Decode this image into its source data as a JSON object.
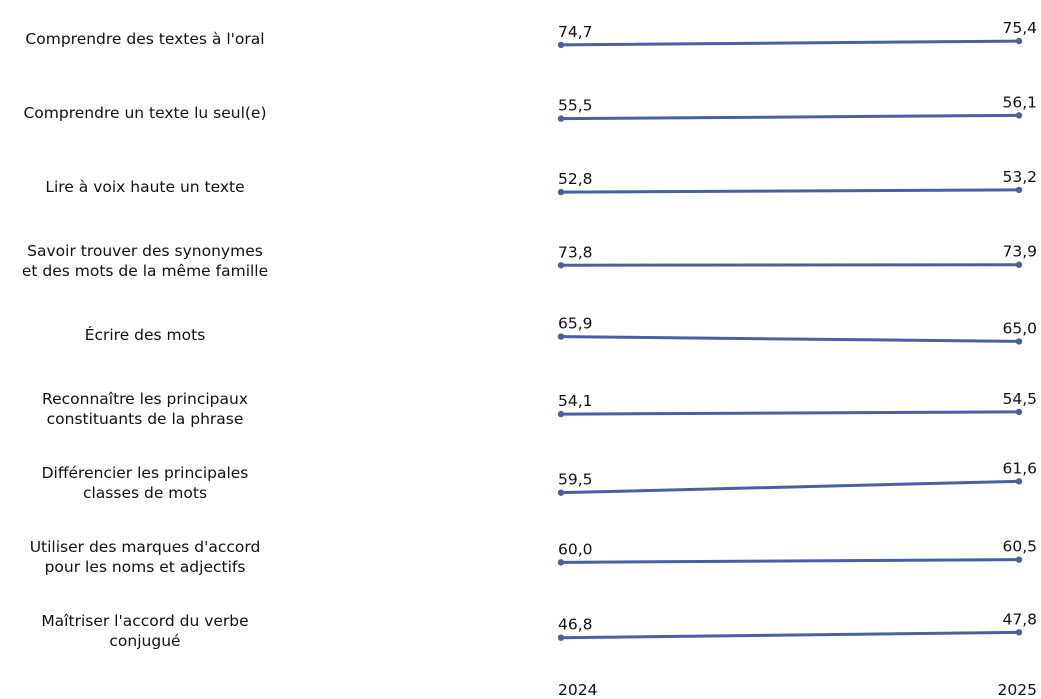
{
  "chart_data": {
    "type": "line",
    "x": [
      "2024",
      "2025"
    ],
    "categories": [
      "Comprendre des textes à l'oral",
      "Comprendre un texte lu seul(e)",
      "Lire à voix haute un texte",
      "Savoir trouver des synonymes\net des mots de la même famille",
      "Écrire des mots",
      "Reconnaître les principaux\nconstituants de la phrase",
      "Différencier les principales\nclasses de mots",
      "Utiliser des marques d'accord\npour les noms et adjectifs",
      "Maîtriser l'accord du verbe\nconjugué"
    ],
    "series": [
      {
        "values": [
          74.7,
          75.4
        ],
        "labels": [
          "74,7",
          "75,4"
        ]
      },
      {
        "values": [
          55.5,
          56.1
        ],
        "labels": [
          "55,5",
          "56,1"
        ]
      },
      {
        "values": [
          52.8,
          53.2
        ],
        "labels": [
          "52,8",
          "53,2"
        ]
      },
      {
        "values": [
          73.8,
          73.9
        ],
        "labels": [
          "73,8",
          "73,9"
        ]
      },
      {
        "values": [
          65.9,
          65.0
        ],
        "labels": [
          "65,9",
          "65,0"
        ]
      },
      {
        "values": [
          54.1,
          54.5
        ],
        "labels": [
          "54,1",
          "54,5"
        ]
      },
      {
        "values": [
          59.5,
          61.6
        ],
        "labels": [
          "59,5",
          "61,6"
        ]
      },
      {
        "values": [
          60.0,
          60.5
        ],
        "labels": [
          "60,0",
          "60,5"
        ]
      },
      {
        "values": [
          46.8,
          47.8
        ],
        "labels": [
          "46,8",
          "47,8"
        ]
      }
    ],
    "line_color": "#4a5fa0",
    "grid": false,
    "legend": "none"
  }
}
